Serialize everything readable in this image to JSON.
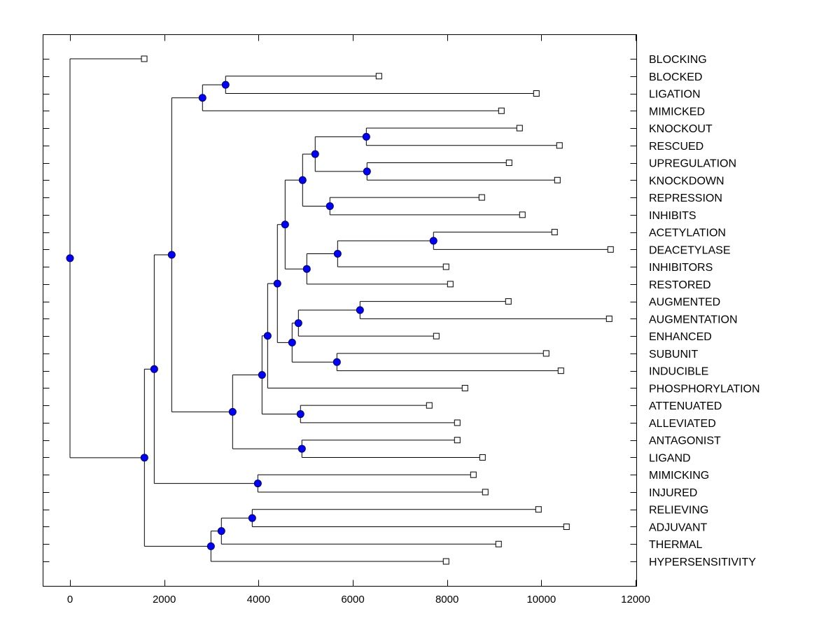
{
  "chart_data": {
    "type": "dendrogram",
    "title": "",
    "xlabel": "",
    "ylabel": "",
    "xlim": [
      -500,
      12100
    ],
    "x_ticks": [
      0,
      2000,
      4000,
      6000,
      8000,
      10000,
      12000
    ],
    "x_tick_labels": [
      "0",
      "2000",
      "4000",
      "6000",
      "8000",
      "10000",
      "12000"
    ],
    "grid": false,
    "colors": {
      "internal_node": "#0000ff",
      "line": "#000000",
      "leaf_marker": "#ffffff"
    },
    "leaves": [
      {
        "label": "BLOCKING",
        "value": 1575
      },
      {
        "label": "BLOCKED",
        "value": 6554
      },
      {
        "label": "LIGATION",
        "value": 9895
      },
      {
        "label": "MIMICKED",
        "value": 9153
      },
      {
        "label": "KNOCKOUT",
        "value": 9539
      },
      {
        "label": "RESCUED",
        "value": 10385
      },
      {
        "label": "UPREGULATION",
        "value": 9316
      },
      {
        "label": "KNOCKDOWN",
        "value": 10341
      },
      {
        "label": "REPRESSION",
        "value": 8737
      },
      {
        "label": "INHIBITS",
        "value": 9598
      },
      {
        "label": "ACETYLATION",
        "value": 10281
      },
      {
        "label": "DEACETYLASE",
        "value": 11469
      },
      {
        "label": "INHIBITORS",
        "value": 7979
      },
      {
        "label": "RESTORED",
        "value": 8069
      },
      {
        "label": "AUGMENTED",
        "value": 9301
      },
      {
        "label": "AUGMENTATION",
        "value": 11440
      },
      {
        "label": "ENHANCED",
        "value": 7772
      },
      {
        "label": "SUBUNIT",
        "value": 10103
      },
      {
        "label": "INDUCIBLE",
        "value": 10415
      },
      {
        "label": "PHOSPHORYLATION",
        "value": 8380
      },
      {
        "label": "ATTENUATED",
        "value": 7623
      },
      {
        "label": "ALLEVIATED",
        "value": 8217
      },
      {
        "label": "ANTAGONIST",
        "value": 8217
      },
      {
        "label": "LIGAND",
        "value": 8752
      },
      {
        "label": "MIMICKING",
        "value": 8559
      },
      {
        "label": "INJURED",
        "value": 8811
      },
      {
        "label": "RELIEVING",
        "value": 9940
      },
      {
        "label": "ADJUVANT",
        "value": 10534
      },
      {
        "label": "THERMAL",
        "value": 9093
      },
      {
        "label": "HYPERSENSITIVITY",
        "value": 7979
      }
    ],
    "tree": {
      "value": 0,
      "children": [
        {
          "leaf": 0
        },
        {
          "value": 1579,
          "children": [
            {
              "value": 1787,
              "children": [
                {
                  "value": 2158,
                  "children": [
                    {
                      "value": 2811,
                      "children": [
                        {
                          "value": 3301,
                          "children": [
                            {
                              "leaf": 1
                            },
                            {
                              "leaf": 2
                            }
                          ]
                        },
                        {
                          "leaf": 3
                        }
                      ]
                    },
                    {
                      "value": 3450,
                      "children": [
                        {
                          "value": 4074,
                          "children": [
                            {
                              "value": 4193,
                              "children": [
                                {
                                  "value": 4400,
                                  "children": [
                                    {
                                      "value": 4564,
                                      "children": [
                                        {
                                          "value": 4935,
                                          "children": [
                                            {
                                              "value": 5202,
                                              "children": [
                                                {
                                                  "value": 6287,
                                                  "children": [
                                                    {
                                                      "leaf": 4
                                                    },
                                                    {
                                                      "leaf": 5
                                                    }
                                                  ]
                                                },
                                                {
                                                  "value": 6301,
                                                  "children": [
                                                    {
                                                      "leaf": 6
                                                    },
                                                    {
                                                      "leaf": 7
                                                    }
                                                  ]
                                                }
                                              ]
                                            },
                                            {
                                              "value": 5514,
                                              "children": [
                                                {
                                                  "leaf": 8
                                                },
                                                {
                                                  "leaf": 9
                                                }
                                              ]
                                            }
                                          ]
                                        },
                                        {
                                          "value": 5024,
                                          "children": [
                                            {
                                              "value": 5678,
                                              "children": [
                                                {
                                                  "value": 7712,
                                                  "children": [
                                                    {
                                                      "leaf": 10
                                                    },
                                                    {
                                                      "leaf": 11
                                                    }
                                                  ]
                                                },
                                                {
                                                  "leaf": 12
                                                }
                                              ]
                                            },
                                            {
                                              "leaf": 13
                                            }
                                          ]
                                        }
                                      ]
                                    },
                                    {
                                      "value": 4712,
                                      "children": [
                                        {
                                          "value": 4846,
                                          "children": [
                                            {
                                              "value": 6153,
                                              "children": [
                                                {
                                                  "leaf": 14
                                                },
                                                {
                                                  "leaf": 15
                                                }
                                              ]
                                            },
                                            {
                                              "leaf": 16
                                            }
                                          ]
                                        },
                                        {
                                          "value": 5663,
                                          "children": [
                                            {
                                              "leaf": 17
                                            },
                                            {
                                              "leaf": 18
                                            }
                                          ]
                                        }
                                      ]
                                    }
                                  ]
                                },
                                {
                                  "leaf": 19
                                }
                              ]
                            },
                            {
                              "value": 4890,
                              "children": [
                                {
                                  "leaf": 20
                                },
                                {
                                  "leaf": 21
                                }
                              ]
                            }
                          ]
                        },
                        {
                          "value": 4920,
                          "children": [
                            {
                              "leaf": 22
                            },
                            {
                              "leaf": 23
                            }
                          ]
                        }
                      ]
                    }
                  ]
                },
                {
                  "value": 3985,
                  "children": [
                    {
                      "leaf": 24
                    },
                    {
                      "leaf": 25
                    }
                  ]
                }
              ]
            },
            {
              "value": 2990,
              "children": [
                {
                  "value": 3212,
                  "children": [
                    {
                      "value": 3866,
                      "children": [
                        {
                          "leaf": 26
                        },
                        {
                          "leaf": 27
                        }
                      ]
                    },
                    {
                      "leaf": 28
                    }
                  ]
                },
                {
                  "leaf": 29
                }
              ]
            }
          ]
        }
      ]
    }
  }
}
